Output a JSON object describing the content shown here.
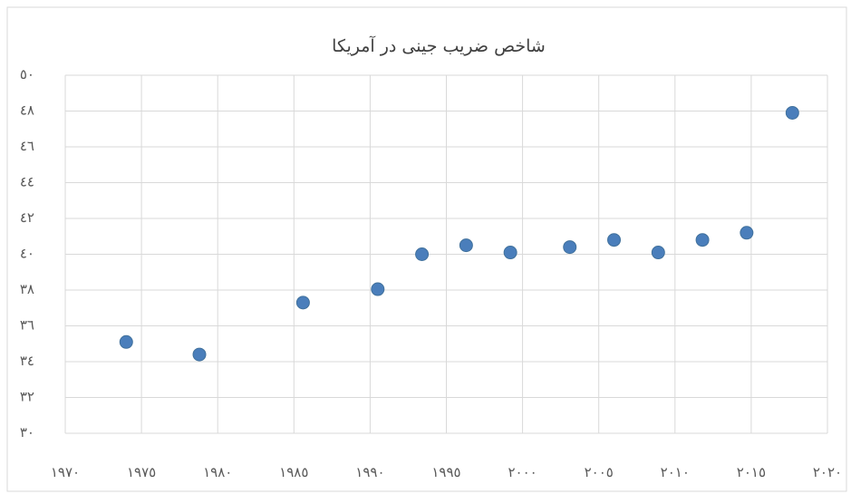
{
  "chart_data": {
    "type": "scatter",
    "title": "شاخص ضریب جینی در آمریکا",
    "color": "#4a7ebb",
    "grid": true,
    "x": [
      1974,
      1978.8,
      1985.6,
      1990.5,
      1993.4,
      1996.3,
      1999.2,
      2003.1,
      2006,
      2008.9,
      2011.8,
      2014.7,
      2017.7
    ],
    "values": [
      35.1,
      34.4,
      37.3,
      38.05,
      40.0,
      40.5,
      40.1,
      40.4,
      40.8,
      40.1,
      40.8,
      41.2,
      47.9
    ],
    "xlim": [
      1970,
      2020
    ],
    "xticks": [
      {
        "value": 1970,
        "label": "١٩٧٠"
      },
      {
        "value": 1975,
        "label": "١٩٧٥"
      },
      {
        "value": 1980,
        "label": "١٩٨٠"
      },
      {
        "value": 1985,
        "label": "١٩٨٥"
      },
      {
        "value": 1990,
        "label": "١٩٩٠"
      },
      {
        "value": 1995,
        "label": "١٩٩٥"
      },
      {
        "value": 2000,
        "label": "٢٠٠٠"
      },
      {
        "value": 2005,
        "label": "٢٠٠٥"
      },
      {
        "value": 2010,
        "label": "٢٠١٠"
      },
      {
        "value": 2015,
        "label": "٢٠١٥"
      },
      {
        "value": 2020,
        "label": "٢٠٢٠"
      }
    ],
    "ylim": [
      30,
      50
    ],
    "yticks": [
      {
        "value": 30,
        "label": "٣٠"
      },
      {
        "value": 32,
        "label": "٣٢"
      },
      {
        "value": 34,
        "label": "٣٤"
      },
      {
        "value": 36,
        "label": "٣٦"
      },
      {
        "value": 38,
        "label": "٣٨"
      },
      {
        "value": 40,
        "label": "٤٠"
      },
      {
        "value": 42,
        "label": "٤٢"
      },
      {
        "value": 44,
        "label": "٤٤"
      },
      {
        "value": 46,
        "label": "٤٦"
      },
      {
        "value": 48,
        "label": "٤٨"
      },
      {
        "value": 50,
        "label": "٥٠"
      }
    ]
  }
}
